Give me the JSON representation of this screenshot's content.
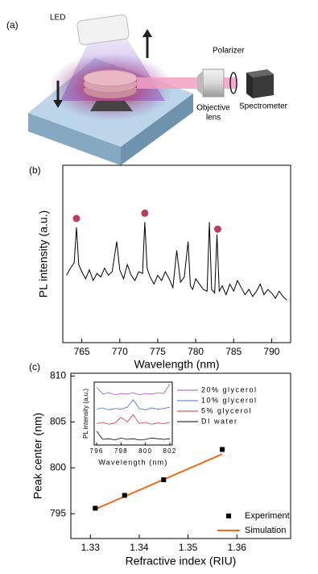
{
  "diagram": {
    "panel_label": "(a)",
    "labels": {
      "led": "LED",
      "polarizer": "Polarizer",
      "objective": [
        "Objective",
        "lens"
      ],
      "spectrometer": "Spectrometer"
    }
  },
  "chart_data": [
    {
      "type": "line",
      "panel_label": "(b)",
      "x_label": "Wavelength (nm)",
      "y_label": "PL intensity (a.u.)",
      "xlim": [
        762.5,
        792.5
      ],
      "xticks": [
        765,
        770,
        775,
        780,
        785,
        790
      ],
      "ylim": [
        0,
        100
      ],
      "x": [
        763,
        763.5,
        764,
        764.3,
        764.6,
        765,
        765.5,
        766,
        766.5,
        767,
        767.5,
        768,
        768.5,
        769,
        769.6,
        770,
        770.5,
        771,
        771.5,
        772,
        772.5,
        773,
        773.3,
        773.6,
        774,
        774.5,
        775,
        775.5,
        776,
        776.5,
        777,
        777.5,
        778,
        778.5,
        779,
        779.3,
        779.6,
        780,
        780.5,
        781,
        781.5,
        781.8,
        782.1,
        782.5,
        782.8,
        783.1,
        783.5,
        784,
        784.5,
        785,
        785.5,
        786,
        786.5,
        787,
        787.5,
        788,
        788.5,
        789,
        789.5,
        790,
        790.5,
        791,
        791.5,
        792
      ],
      "series": [
        {
          "color": "#000000",
          "values": [
            38,
            42,
            45,
            65,
            44,
            40,
            36,
            41,
            35,
            39,
            37,
            42,
            38,
            40,
            57,
            41,
            36,
            44,
            38,
            35,
            40,
            39,
            68,
            42,
            37,
            33,
            38,
            35,
            40,
            36,
            31,
            52,
            34,
            37,
            57,
            32,
            30,
            36,
            33,
            30,
            29,
            68,
            30,
            28,
            61,
            29,
            32,
            27,
            33,
            29,
            35,
            31,
            27,
            30,
            26,
            29,
            33,
            27,
            30,
            28,
            25,
            29,
            26,
            24
          ]
        }
      ],
      "markers": {
        "color": "#b5405e",
        "x": [
          764.3,
          773.3,
          782.9
        ],
        "values": [
          70,
          73,
          64
        ]
      }
    },
    {
      "type": "scatter",
      "panel_label": "(c)",
      "x_label": "Refractive index (RIU)",
      "y_label": "Peak center (nm)",
      "xlim": [
        1.326,
        1.371
      ],
      "xticks": [
        1.33,
        1.34,
        1.35,
        1.36
      ],
      "ylim": [
        792.3,
        810.3
      ],
      "yticks": [
        795,
        800,
        805,
        810
      ],
      "series": [
        {
          "name": "Experiment",
          "style": "marker",
          "color": "#000000",
          "x": [
            1.331,
            1.337,
            1.345,
            1.357
          ],
          "values": [
            795.6,
            797.0,
            798.7,
            802.0
          ]
        },
        {
          "name": "Simulation",
          "style": "line",
          "color": "#ef6c1a",
          "x": [
            1.331,
            1.357
          ],
          "values": [
            795.5,
            801.5
          ]
        }
      ]
    },
    {
      "type": "line",
      "x_label": "Wavelength (nm)",
      "y_label": "PL intensity (a.u.)",
      "xlim": [
        795.8,
        802.2
      ],
      "xticks": [
        796,
        798,
        800,
        802
      ],
      "ylim": [
        0,
        100
      ],
      "x": [
        796,
        796.5,
        797,
        797.5,
        798,
        798.5,
        799,
        799.5,
        800,
        800.5,
        801,
        801.5,
        802
      ],
      "series": [
        {
          "name": "20% glycerol",
          "color": "#b14fc5",
          "values": [
            92,
            81,
            83,
            80,
            82,
            81,
            83,
            80,
            82,
            81,
            83,
            82,
            97
          ]
        },
        {
          "name": "10% glycerol",
          "color": "#3f6fd8",
          "values": [
            57,
            59,
            56,
            58,
            57,
            60,
            72,
            58,
            56,
            59,
            57,
            58,
            60
          ]
        },
        {
          "name": "5% glycerol",
          "color": "#e0312b",
          "values": [
            34,
            36,
            33,
            35,
            44,
            37,
            48,
            34,
            36,
            33,
            35,
            34,
            36
          ]
        },
        {
          "name": "DI water",
          "color": "#000000",
          "values": [
            22,
            9,
            10,
            8,
            11,
            9,
            10,
            8,
            9,
            11,
            10,
            9,
            10
          ]
        }
      ]
    }
  ]
}
